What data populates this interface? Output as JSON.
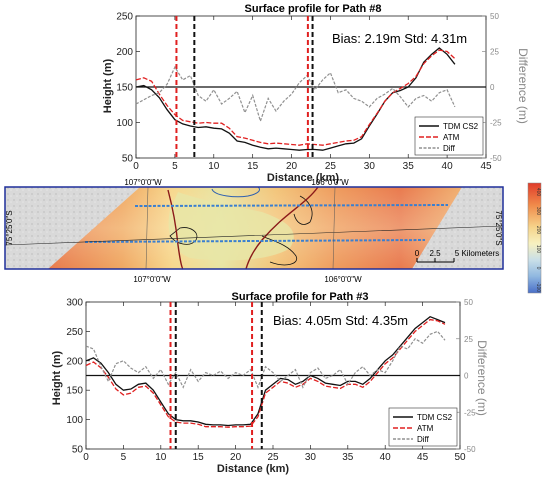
{
  "chart_data": [
    {
      "type": "line",
      "title": "Surface profile for Path #8",
      "xlabel": "Distance (km)",
      "ylabel": "Height (m)",
      "y2label": "Difference (m)",
      "xlim": [
        0,
        45
      ],
      "ylim": [
        50,
        250
      ],
      "y2lim": [
        -50,
        50
      ],
      "xticks": [
        0,
        5,
        10,
        15,
        20,
        25,
        30,
        35,
        40,
        45
      ],
      "yticks": [
        50,
        100,
        150,
        200,
        250
      ],
      "y2ticks": [
        -50,
        -25,
        0,
        25,
        50
      ],
      "annotation": "Bias: 2.19m Std: 4.31m",
      "vlines": [
        {
          "x": 5.2,
          "color": "#e02020"
        },
        {
          "x": 7.5,
          "color": "#111111"
        },
        {
          "x": 22.1,
          "color": "#e02020"
        },
        {
          "x": 22.7,
          "color": "#111111"
        }
      ],
      "legend": {
        "placement": "bottom-right"
      },
      "series": [
        {
          "name": "TDM CS2",
          "axis": "left",
          "color": "#111111",
          "x": [
            0,
            1,
            2,
            3,
            4,
            5,
            6,
            7,
            8,
            9,
            10,
            11,
            12,
            13,
            14,
            15,
            16,
            17,
            18,
            19,
            20,
            21,
            22,
            23,
            24,
            25,
            26,
            27,
            28,
            29,
            30,
            31,
            32,
            33,
            34,
            35,
            36,
            37,
            38,
            39,
            40,
            41
          ],
          "y": [
            150,
            152,
            146,
            135,
            118,
            104,
            98,
            95,
            93,
            94,
            92,
            91,
            85,
            74,
            72,
            68,
            65,
            63,
            64,
            63,
            62,
            61,
            62,
            62,
            61,
            64,
            67,
            70,
            71,
            77,
            95,
            112,
            130,
            142,
            145,
            150,
            163,
            185,
            196,
            205,
            196,
            182
          ]
        },
        {
          "name": "ATM",
          "axis": "left",
          "color": "#e02020",
          "x": [
            0,
            1,
            2,
            3,
            4,
            5,
            6,
            7,
            8,
            9,
            10,
            11,
            12,
            13,
            14,
            15,
            16,
            17,
            18,
            19,
            20,
            21,
            22,
            23,
            24,
            25,
            26,
            27,
            28,
            29,
            30,
            31,
            32,
            33,
            34,
            35,
            36,
            37,
            38,
            39,
            40,
            41
          ],
          "y": [
            160,
            163,
            158,
            140,
            124,
            111,
            103,
            101,
            99,
            100,
            99,
            99,
            92,
            80,
            78,
            75,
            72,
            70,
            71,
            70,
            69,
            68,
            70,
            69,
            68,
            70,
            72,
            74,
            75,
            80,
            97,
            113,
            130,
            142,
            148,
            155,
            165,
            183,
            194,
            202,
            200,
            190
          ]
        },
        {
          "name": "Diff",
          "axis": "right",
          "color": "#909090",
          "x": [
            0,
            1,
            2,
            3,
            4,
            5,
            6,
            7,
            8,
            9,
            10,
            11,
            12,
            13,
            14,
            15,
            16,
            17,
            18,
            19,
            20,
            21,
            22,
            23,
            24,
            25,
            26,
            27,
            28,
            29,
            30,
            31,
            32,
            33,
            34,
            35,
            36,
            37,
            38,
            39,
            40,
            41
          ],
          "y": [
            -12,
            -9,
            -6,
            -4,
            2,
            14,
            5,
            8,
            -6,
            -10,
            -2,
            -12,
            -8,
            -3,
            -18,
            -6,
            -24,
            -8,
            -17,
            -10,
            -5,
            3,
            8,
            -2,
            5,
            10,
            -4,
            -2,
            -8,
            -10,
            -14,
            -8,
            -5,
            -1,
            -7,
            -14,
            -8,
            -6,
            -10,
            -4,
            -2,
            -14
          ]
        }
      ]
    },
    {
      "type": "line",
      "title": "Surface profile for Path #3",
      "xlabel": "Distance (km)",
      "ylabel": "Height (m)",
      "y2label": "Difference (m)",
      "xlim": [
        0,
        50
      ],
      "ylim": [
        50,
        300
      ],
      "y2lim": [
        -50,
        50
      ],
      "xticks": [
        0,
        5,
        10,
        15,
        20,
        25,
        30,
        35,
        40,
        45,
        50
      ],
      "yticks": [
        50,
        100,
        150,
        200,
        250,
        300
      ],
      "y2ticks": [
        -50,
        -25,
        0,
        25,
        50
      ],
      "annotation": "Bias: 4.05m Std: 4.35m",
      "vlines": [
        {
          "x": 11.3,
          "color": "#e02020"
        },
        {
          "x": 12.0,
          "color": "#111111"
        },
        {
          "x": 22.2,
          "color": "#e02020"
        },
        {
          "x": 23.5,
          "color": "#111111"
        }
      ],
      "legend": {
        "placement": "bottom-right"
      },
      "series": [
        {
          "name": "TDM CS2",
          "axis": "left",
          "color": "#111111",
          "x": [
            0,
            1,
            2,
            3,
            4,
            5,
            6,
            7,
            8,
            9,
            10,
            11,
            12,
            13,
            14,
            15,
            16,
            17,
            18,
            19,
            20,
            21,
            22,
            23,
            24,
            25,
            26,
            27,
            28,
            29,
            30,
            31,
            32,
            33,
            34,
            35,
            36,
            37,
            38,
            39,
            40,
            41,
            42,
            43,
            44,
            45,
            46,
            47,
            48
          ],
          "y": [
            200,
            205,
            196,
            180,
            160,
            150,
            152,
            160,
            162,
            150,
            130,
            110,
            100,
            98,
            98,
            96,
            92,
            91,
            91,
            90,
            91,
            91,
            92,
            110,
            150,
            160,
            170,
            168,
            160,
            165,
            175,
            170,
            162,
            160,
            158,
            165,
            165,
            160,
            170,
            185,
            200,
            210,
            225,
            240,
            255,
            265,
            275,
            270,
            265
          ]
        },
        {
          "name": "ATM",
          "axis": "left",
          "color": "#e02020",
          "x": [
            0,
            1,
            2,
            3,
            4,
            5,
            6,
            7,
            8,
            9,
            10,
            11,
            12,
            13,
            14,
            15,
            16,
            17,
            18,
            19,
            20,
            21,
            22,
            23,
            24,
            25,
            26,
            27,
            28,
            29,
            30,
            31,
            32,
            33,
            34,
            35,
            36,
            37,
            38,
            39,
            40,
            41,
            42,
            43,
            44,
            45,
            46,
            47,
            48
          ],
          "y": [
            192,
            198,
            188,
            172,
            152,
            142,
            145,
            155,
            157,
            145,
            125,
            105,
            96,
            94,
            94,
            92,
            88,
            88,
            88,
            87,
            88,
            88,
            89,
            105,
            145,
            155,
            165,
            162,
            155,
            160,
            170,
            165,
            157,
            155,
            153,
            160,
            160,
            155,
            165,
            180,
            195,
            205,
            220,
            235,
            250,
            260,
            270,
            268,
            262
          ]
        },
        {
          "name": "Diff",
          "axis": "right",
          "color": "#909090",
          "x": [
            0,
            1,
            2,
            3,
            4,
            5,
            6,
            7,
            8,
            9,
            10,
            11,
            12,
            13,
            14,
            15,
            16,
            17,
            18,
            19,
            20,
            21,
            22,
            23,
            24,
            25,
            26,
            27,
            28,
            29,
            30,
            31,
            32,
            33,
            34,
            35,
            36,
            37,
            38,
            39,
            40,
            41,
            42,
            43,
            44,
            45,
            46,
            47,
            48
          ],
          "y": [
            20,
            18,
            6,
            -4,
            8,
            10,
            5,
            2,
            6,
            -2,
            4,
            -6,
            2,
            -8,
            4,
            -4,
            2,
            0,
            3,
            -2,
            2,
            0,
            4,
            -8,
            6,
            2,
            -4,
            0,
            4,
            -8,
            2,
            5,
            -2,
            0,
            4,
            -6,
            2,
            6,
            0,
            4,
            2,
            10,
            20,
            18,
            25,
            22,
            28,
            30,
            24
          ]
        }
      ]
    }
  ],
  "map": {
    "top_lon_labels": [
      "107°0'0\"W",
      "106°0'0\"W"
    ],
    "bottom_lon_labels": [
      "107°0'0\"W",
      "106°0'0\"W"
    ],
    "left_lat_label": "75°25'0\"S",
    "right_lat_label": "75°25'0\"S",
    "scalebar": [
      "0",
      "2.5",
      "5 Kilometers"
    ]
  },
  "colorbar": {
    "tick_labels": [
      "400",
      "300",
      "200",
      "100",
      "0",
      "-100"
    ]
  },
  "colors": {
    "tdm": "#111111",
    "atm": "#e02020",
    "diff": "#909090",
    "track": "#3a7fd0",
    "map_frame": "#1f2f9a"
  }
}
